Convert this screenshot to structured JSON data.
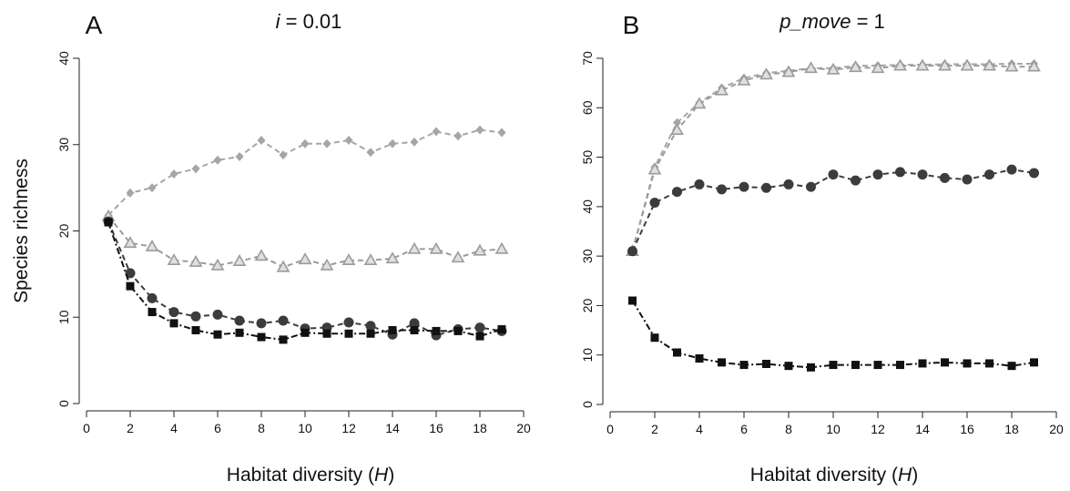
{
  "chart_data": [
    {
      "type": "line",
      "panel_letter": "A",
      "title_var": "i",
      "title_rest": " = 0.01",
      "xlabel_text": "Habitat diversity (",
      "xlabel_var": "H",
      "xlabel_end": ")",
      "ylabel": "Species richness",
      "xlim": [
        0,
        20
      ],
      "ylim": [
        0,
        40
      ],
      "x_ticks": [
        0,
        2,
        4,
        6,
        8,
        10,
        12,
        14,
        16,
        18,
        20
      ],
      "y_ticks": [
        0,
        10,
        20,
        30,
        40
      ],
      "x": [
        1,
        2,
        3,
        4,
        5,
        6,
        7,
        8,
        9,
        10,
        11,
        12,
        13,
        14,
        15,
        16,
        17,
        18,
        19
      ],
      "series": [
        {
          "marker": "diamond",
          "color": "#a6a6a6",
          "dash": "6,4",
          "values": [
            21.8,
            24.4,
            25.0,
            26.6,
            27.2,
            28.2,
            28.6,
            30.5,
            28.8,
            30.1,
            30.1,
            30.5,
            29.1,
            30.1,
            30.3,
            31.5,
            31.0,
            31.7,
            31.4
          ]
        },
        {
          "marker": "triangle",
          "color": "#9b9b9b",
          "dash": "6,4",
          "values": [
            21.7,
            18.6,
            18.2,
            16.6,
            16.4,
            16.0,
            16.5,
            17.1,
            15.8,
            16.7,
            16.0,
            16.6,
            16.6,
            16.8,
            17.9,
            17.9,
            16.9,
            17.7,
            17.9
          ]
        },
        {
          "marker": "circle",
          "color": "#3c3c3c",
          "dash": "6,4",
          "values": [
            21.1,
            15.1,
            12.2,
            10.6,
            10.1,
            10.3,
            9.6,
            9.3,
            9.6,
            8.7,
            8.8,
            9.4,
            9.0,
            8.0,
            9.3,
            7.9,
            8.6,
            8.8,
            8.4
          ]
        },
        {
          "marker": "square",
          "color": "#111111",
          "dash": "7,3,2,3",
          "values": [
            21.0,
            13.6,
            10.6,
            9.3,
            8.5,
            8.0,
            8.2,
            7.7,
            7.4,
            8.2,
            8.1,
            8.1,
            8.1,
            8.5,
            8.5,
            8.4,
            8.4,
            7.8,
            8.6
          ]
        }
      ]
    },
    {
      "type": "line",
      "panel_letter": "B",
      "title_var": "p_move",
      "title_rest": " = 1",
      "xlabel_text": "Habitat diversity (",
      "xlabel_var": "H",
      "xlabel_end": ")",
      "ylabel": "",
      "xlim": [
        0,
        20
      ],
      "ylim": [
        0,
        70
      ],
      "x_ticks": [
        0,
        2,
        4,
        6,
        8,
        10,
        12,
        14,
        16,
        18,
        20
      ],
      "y_ticks": [
        0,
        10,
        20,
        30,
        40,
        50,
        60,
        70
      ],
      "x": [
        1,
        2,
        3,
        4,
        5,
        6,
        7,
        8,
        9,
        10,
        11,
        12,
        13,
        14,
        15,
        16,
        17,
        18,
        19
      ],
      "series": [
        {
          "marker": "diamond",
          "color": "#a6a6a6",
          "dash": "6,4",
          "values": [
            31.0,
            48.0,
            57.0,
            61.0,
            64.0,
            66.0,
            67.0,
            67.5,
            68.0,
            68.0,
            68.5,
            68.5,
            68.7,
            68.7,
            68.8,
            68.8,
            68.8,
            68.9,
            68.9
          ]
        },
        {
          "marker": "triangle",
          "color": "#9b9b9b",
          "dash": "6,4",
          "values": [
            31.0,
            47.5,
            55.5,
            60.8,
            63.5,
            65.5,
            66.7,
            67.2,
            68.0,
            67.7,
            68.2,
            68.0,
            68.5,
            68.5,
            68.5,
            68.5,
            68.5,
            68.3,
            68.3
          ]
        },
        {
          "marker": "circle",
          "color": "#3c3c3c",
          "dash": "6,4",
          "values": [
            31.0,
            40.8,
            43.0,
            44.5,
            43.5,
            44.0,
            43.8,
            44.5,
            44.0,
            46.5,
            45.3,
            46.5,
            47.0,
            46.5,
            45.8,
            45.5,
            46.5,
            47.5,
            46.8
          ]
        },
        {
          "marker": "square",
          "color": "#111111",
          "dash": "7,3,2,3",
          "values": [
            21.0,
            13.5,
            10.5,
            9.3,
            8.5,
            8.0,
            8.2,
            7.8,
            7.5,
            8.0,
            8.0,
            8.0,
            8.0,
            8.3,
            8.5,
            8.3,
            8.3,
            7.8,
            8.5
          ]
        }
      ]
    }
  ]
}
